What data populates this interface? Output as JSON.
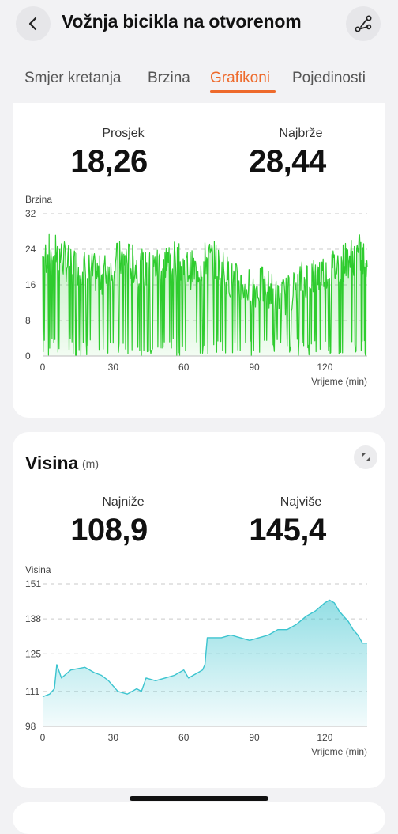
{
  "header": {
    "title": "Vožnja bicikla na otvorenom",
    "back_icon": "chevron-left-icon",
    "route_icon": "route-icon"
  },
  "tabs": [
    {
      "label": "Smjer kretanja",
      "active": false
    },
    {
      "label": "Brzina",
      "active": false
    },
    {
      "label": "Grafikoni",
      "active": true
    },
    {
      "label": "Pojedinosti",
      "active": false
    }
  ],
  "accent_color": "#ee6a2b",
  "speed": {
    "avg_label": "Prosjek",
    "avg_value": "18,26",
    "max_label": "Najbrže",
    "max_value": "28,44"
  },
  "altitude": {
    "title": "Visina",
    "unit": "(m)",
    "min_label": "Najniže",
    "min_value": "108,9",
    "max_label": "Najviše",
    "max_value": "145,4",
    "expand_icon": "expand-icon"
  },
  "chart_data": [
    {
      "type": "area",
      "ylabel": "Brzina",
      "xlabel": "Vrijeme (min)",
      "yticks": [
        0,
        8,
        16,
        24,
        32
      ],
      "xticks": [
        0,
        30,
        60,
        90,
        120
      ],
      "xlim": [
        0,
        138
      ],
      "ylim": [
        0,
        32
      ],
      "grid": true,
      "color": "#2ecc2e",
      "series": [
        {
          "x": [
            0,
            5,
            10,
            15,
            20,
            25,
            30,
            35,
            40,
            45,
            50,
            55,
            60,
            65,
            70,
            75,
            80,
            85,
            90,
            95,
            100,
            105,
            110,
            115,
            120,
            125,
            130,
            135,
            138
          ],
          "values": [
            22,
            24,
            21,
            20,
            19,
            18,
            21,
            22,
            20,
            19,
            21,
            22,
            20,
            19,
            22,
            21,
            17,
            16,
            15,
            16,
            13,
            14,
            17,
            18,
            19,
            20,
            22,
            23,
            20
          ]
        }
      ]
    },
    {
      "type": "area",
      "ylabel": "Visina",
      "xlabel": "Vrijeme (min)",
      "yticks": [
        98,
        111,
        125,
        138,
        151
      ],
      "xticks": [
        0,
        30,
        60,
        90,
        120
      ],
      "xlim": [
        0,
        138
      ],
      "ylim": [
        98,
        151
      ],
      "grid": true,
      "color": "#3cc4cf",
      "series": [
        {
          "x": [
            0,
            3,
            5,
            6,
            8,
            12,
            18,
            22,
            25,
            28,
            32,
            36,
            40,
            42,
            44,
            48,
            52,
            56,
            58,
            60,
            62,
            64,
            66,
            68,
            69,
            70,
            72,
            76,
            80,
            84,
            88,
            92,
            96,
            100,
            104,
            108,
            112,
            116,
            120,
            122,
            124,
            126,
            128,
            130,
            132,
            134,
            136,
            138
          ],
          "values": [
            109,
            110,
            112,
            121,
            116,
            119,
            120,
            118,
            117,
            115,
            111,
            110,
            112,
            111,
            116,
            115,
            116,
            117,
            118,
            119,
            116,
            117,
            118,
            119,
            121,
            131,
            131,
            131,
            132,
            131,
            130,
            131,
            132,
            134,
            134,
            136,
            139,
            141,
            144,
            145,
            144,
            141,
            139,
            137,
            134,
            132,
            129,
            129
          ]
        }
      ]
    }
  ]
}
